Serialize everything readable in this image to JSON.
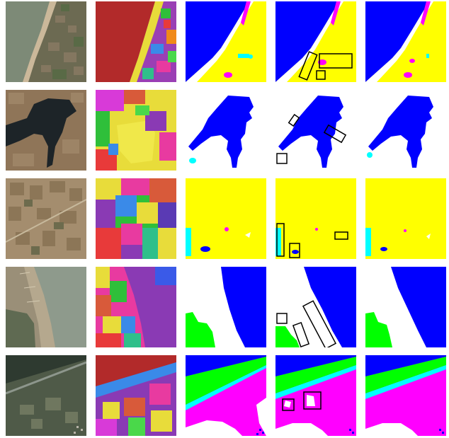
{
  "figure": {
    "rows": [
      {
        "columns": [
          "satellite-image",
          "segment-map",
          "mask-a",
          "mask-annotated",
          "mask-b"
        ]
      },
      {
        "columns": [
          "satellite-image",
          "segment-map",
          "mask-a",
          "mask-annotated",
          "mask-b"
        ]
      },
      {
        "columns": [
          "satellite-image",
          "segment-map",
          "mask-a",
          "mask-annotated",
          "mask-b"
        ]
      },
      {
        "columns": [
          "satellite-image",
          "segment-map",
          "mask-a",
          "mask-annotated",
          "mask-b"
        ]
      },
      {
        "columns": [
          "satellite-image",
          "segment-map",
          "mask-a",
          "mask-annotated",
          "mask-b"
        ]
      }
    ]
  },
  "colors": {
    "water": "#0000ff",
    "agriculture": "#ffff00",
    "background": "#ffffff",
    "vegetation": "#00ff00",
    "urban": "#ff00ff",
    "other": "#00ffff",
    "annotation_box": "#000000"
  }
}
